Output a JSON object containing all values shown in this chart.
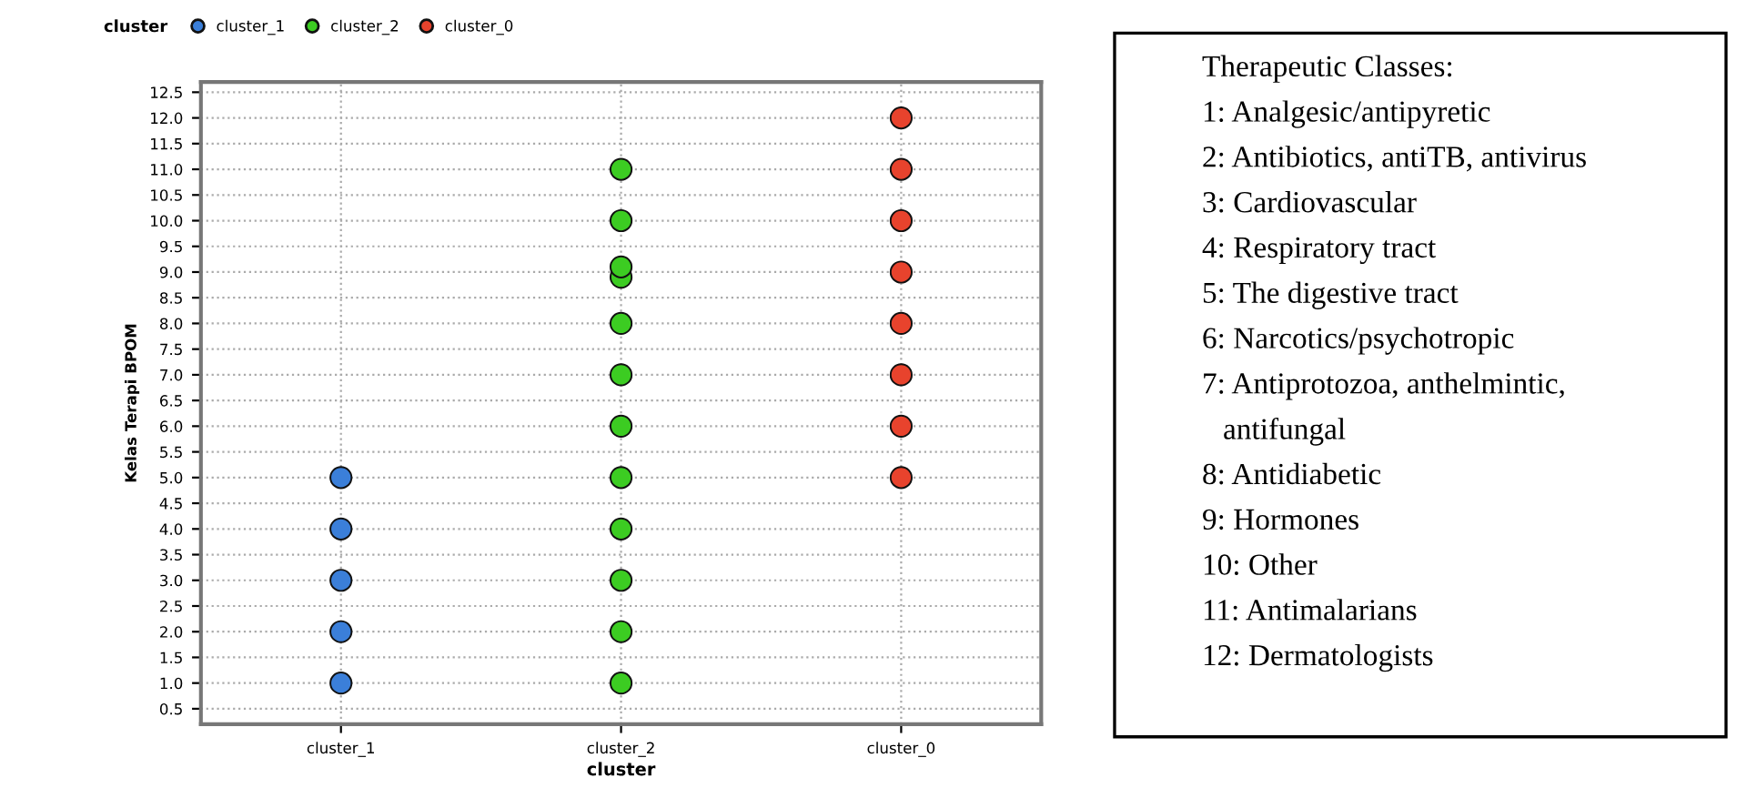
{
  "chart_data": {
    "type": "scatter",
    "xlabel": "cluster",
    "ylabel": "Kelas Terapi BPOM",
    "legend_title": "cluster",
    "legend": "top left",
    "grid": true,
    "marker": "circle",
    "categories": [
      "cluster_1",
      "cluster_2",
      "cluster_0"
    ],
    "ylim": [
      0.2,
      12.7
    ],
    "yticks": [
      {
        "value": 0.5,
        "label": "0.5"
      },
      {
        "value": 1,
        "label": "1.0"
      },
      {
        "value": 1.5,
        "label": "1.5"
      },
      {
        "value": 2,
        "label": "2.0"
      },
      {
        "value": 2.5,
        "label": "2.5"
      },
      {
        "value": 3,
        "label": "3.0"
      },
      {
        "value": 3.5,
        "label": "3.5"
      },
      {
        "value": 4,
        "label": "4.0"
      },
      {
        "value": 4.5,
        "label": "4.5"
      },
      {
        "value": 5,
        "label": "5.0"
      },
      {
        "value": 5.5,
        "label": "5.5"
      },
      {
        "value": 6,
        "label": "6.0"
      },
      {
        "value": 6.5,
        "label": "6.5"
      },
      {
        "value": 7,
        "label": "7.0"
      },
      {
        "value": 7.5,
        "label": "7.5"
      },
      {
        "value": 8,
        "label": "8.0"
      },
      {
        "value": 8.5,
        "label": "8.5"
      },
      {
        "value": 9,
        "label": "9.0"
      },
      {
        "value": 9.5,
        "label": "9.5"
      },
      {
        "value": 10,
        "label": "10.0"
      },
      {
        "value": 10.5,
        "label": "10.5"
      },
      {
        "value": 11,
        "label": "11.0"
      },
      {
        "value": 11.5,
        "label": "11.5"
      },
      {
        "value": 12,
        "label": "12.0"
      },
      {
        "value": 12.5,
        "label": "12.5"
      }
    ],
    "series": [
      {
        "name": "cluster_1",
        "color": "#3b7fd9",
        "x": [
          "cluster_1",
          "cluster_1",
          "cluster_1",
          "cluster_1",
          "cluster_1"
        ],
        "values": [
          1,
          2,
          3,
          4,
          5
        ]
      },
      {
        "name": "cluster_2",
        "color": "#3ccc22",
        "x": [
          "cluster_2",
          "cluster_2",
          "cluster_2",
          "cluster_2",
          "cluster_2",
          "cluster_2",
          "cluster_2",
          "cluster_2",
          "cluster_2",
          "cluster_2",
          "cluster_2",
          "cluster_2"
        ],
        "values": [
          1,
          2,
          3,
          4,
          5,
          6,
          7,
          8,
          8.9,
          9.1,
          10,
          11
        ]
      },
      {
        "name": "cluster_0",
        "color": "#e8432d",
        "x": [
          "cluster_0",
          "cluster_0",
          "cluster_0",
          "cluster_0",
          "cluster_0",
          "cluster_0",
          "cluster_0",
          "cluster_0"
        ],
        "values": [
          5,
          6,
          7,
          8,
          9,
          10,
          11,
          12
        ]
      }
    ],
    "annotations": [
      "Therapeutic Classes:",
      "1: Analgesic/antipyretic",
      "2: Antibiotics, antiTB, antivirus",
      "3: Cardiovascular",
      "4: Respiratory tract",
      "5: The digestive tract",
      "6: Narcotics/psychotropic",
      "7: Antiprotozoa, anthelmintic,",
      "antifungal",
      "8: Antidiabetic",
      "9: Hormones",
      "10: Other",
      "11: Antimalarians",
      "12: Dermatologists"
    ]
  }
}
